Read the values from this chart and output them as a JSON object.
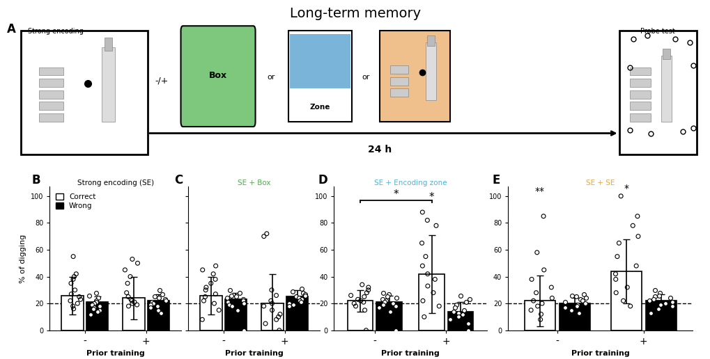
{
  "title": "Long-term memory",
  "title_fontsize": 14,
  "panels": [
    "B",
    "C",
    "D",
    "E"
  ],
  "panel_titles": [
    "Strong encoding (SE)",
    "SE + Box",
    "SE + Encoding zone",
    "SE + SE"
  ],
  "panel_title_colors": [
    "black",
    "#4cae4c",
    "#46b8da",
    "#e8a838"
  ],
  "ylabel": "% of digging",
  "xlabel": "Prior training",
  "yticks": [
    0,
    20,
    40,
    60,
    80,
    100
  ],
  "ylim": [
    0,
    107
  ],
  "chance_line": 20,
  "B": {
    "correct_minus_mean": 26,
    "correct_minus_sd": 14,
    "correct_minus_dots": [
      55,
      42,
      40,
      38,
      35,
      30,
      27,
      25,
      23,
      22,
      20,
      18,
      16
    ],
    "wrong_minus_mean": 21,
    "wrong_minus_sd": 4,
    "wrong_minus_dots": [
      28,
      26,
      24,
      22,
      21,
      20,
      19,
      18,
      17,
      16,
      15,
      14,
      12
    ],
    "correct_plus_mean": 24,
    "correct_plus_sd": 16,
    "correct_plus_dots": [
      53,
      50,
      45,
      40,
      35,
      28,
      25,
      23,
      22,
      21,
      20,
      19,
      18
    ],
    "wrong_plus_mean": 22,
    "wrong_plus_sd": 5,
    "wrong_plus_dots": [
      30,
      27,
      25,
      24,
      23,
      22,
      21,
      20,
      19,
      18,
      17,
      15,
      13
    ],
    "sig_bar": false,
    "sig_correct_minus": "",
    "sig_correct_plus": ""
  },
  "C": {
    "correct_minus_mean": 26,
    "correct_minus_sd": 14,
    "correct_minus_dots": [
      48,
      45,
      42,
      38,
      35,
      32,
      30,
      27,
      25,
      22,
      20,
      15,
      8
    ],
    "wrong_minus_mean": 23,
    "wrong_minus_sd": 5,
    "wrong_minus_dots": [
      30,
      28,
      26,
      25,
      24,
      23,
      22,
      21,
      20,
      19,
      18,
      15,
      0
    ],
    "correct_plus_mean": 20,
    "correct_plus_sd": 22,
    "correct_plus_dots": [
      72,
      70,
      30,
      26,
      22,
      20,
      18,
      15,
      12,
      10,
      8,
      5,
      0
    ],
    "wrong_plus_mean": 25,
    "wrong_plus_sd": 5,
    "wrong_plus_dots": [
      31,
      29,
      28,
      27,
      26,
      25,
      24,
      23,
      22,
      21,
      20,
      19,
      18
    ],
    "sig_bar": false,
    "sig_correct_minus": "",
    "sig_correct_plus": ""
  },
  "D": {
    "correct_minus_mean": 22,
    "correct_minus_sd": 8,
    "correct_minus_dots": [
      34,
      32,
      30,
      28,
      26,
      25,
      23,
      22,
      21,
      20,
      18,
      15,
      0
    ],
    "wrong_minus_mean": 21,
    "wrong_minus_sd": 5,
    "wrong_minus_dots": [
      28,
      27,
      25,
      24,
      23,
      22,
      21,
      20,
      19,
      18,
      17,
      14,
      0
    ],
    "correct_plus_mean": 42,
    "correct_plus_sd": 29,
    "correct_plus_dots": [
      88,
      82,
      78,
      65,
      55,
      48,
      42,
      38,
      33,
      28,
      22,
      18,
      10
    ],
    "wrong_plus_mean": 14,
    "wrong_plus_sd": 7,
    "wrong_plus_dots": [
      26,
      23,
      21,
      19,
      17,
      15,
      14,
      13,
      12,
      10,
      8,
      5,
      0
    ],
    "sig_bar": true,
    "sig_correct_minus": "",
    "sig_correct_plus": "*"
  },
  "E": {
    "correct_minus_mean": 22,
    "correct_minus_sd": 19,
    "correct_minus_dots": [
      85,
      58,
      45,
      38,
      32,
      28,
      24,
      22,
      20,
      18,
      15,
      12,
      8
    ],
    "wrong_minus_mean": 20,
    "wrong_minus_sd": 4,
    "wrong_minus_dots": [
      27,
      26,
      25,
      24,
      23,
      22,
      21,
      20,
      19,
      18,
      17,
      15,
      13
    ],
    "correct_plus_mean": 44,
    "correct_plus_sd": 24,
    "correct_plus_dots": [
      100,
      85,
      78,
      70,
      65,
      55,
      48,
      42,
      38,
      32,
      28,
      22,
      18
    ],
    "wrong_plus_mean": 22,
    "wrong_plus_sd": 5,
    "wrong_plus_dots": [
      30,
      28,
      26,
      25,
      24,
      23,
      22,
      21,
      20,
      19,
      18,
      16,
      13
    ],
    "sig_bar": false,
    "sig_correct_minus": "**",
    "sig_correct_plus": "*"
  }
}
